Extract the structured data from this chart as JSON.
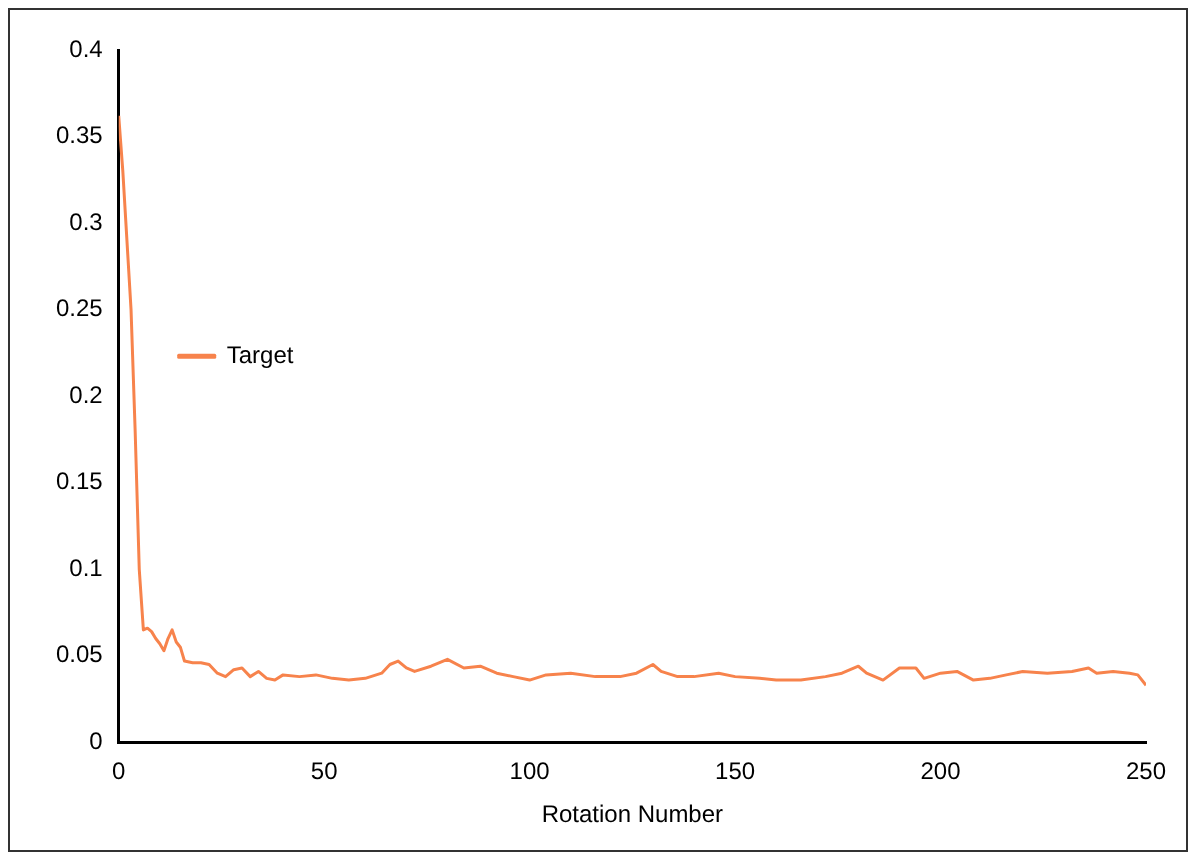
{
  "chart_data": {
    "type": "line",
    "xlabel": "Rotation Number",
    "xlim": [
      0,
      250
    ],
    "xticks": [
      0,
      50,
      100,
      150,
      200,
      250
    ],
    "ylim": [
      0,
      0.4
    ],
    "yticks": [
      0,
      0.05,
      0.1,
      0.15,
      0.2,
      0.25,
      0.3,
      0.35,
      0.4
    ],
    "grid": false,
    "legend": "top",
    "marker": "none",
    "line_style": "solid",
    "series": [
      {
        "name": "Target",
        "color": "#f7834c",
        "x": [
          0,
          1,
          2,
          3,
          4,
          5,
          6,
          7,
          8,
          9,
          10,
          11,
          12,
          13,
          14,
          15,
          16,
          18,
          20,
          22,
          24,
          26,
          28,
          30,
          32,
          34,
          36,
          38,
          40,
          44,
          48,
          52,
          56,
          60,
          64,
          66,
          68,
          70,
          72,
          76,
          80,
          84,
          88,
          92,
          96,
          100,
          104,
          110,
          116,
          122,
          126,
          130,
          132,
          136,
          140,
          146,
          150,
          156,
          160,
          166,
          172,
          176,
          180,
          182,
          186,
          190,
          194,
          196,
          200,
          204,
          208,
          212,
          216,
          220,
          226,
          232,
          236,
          238,
          242,
          246,
          248,
          250
        ],
        "values": [
          0.362,
          0.33,
          0.29,
          0.25,
          0.18,
          0.1,
          0.065,
          0.066,
          0.064,
          0.06,
          0.057,
          0.053,
          0.06,
          0.065,
          0.058,
          0.055,
          0.047,
          0.046,
          0.046,
          0.045,
          0.04,
          0.038,
          0.042,
          0.043,
          0.038,
          0.041,
          0.037,
          0.036,
          0.039,
          0.038,
          0.039,
          0.037,
          0.036,
          0.037,
          0.04,
          0.045,
          0.047,
          0.043,
          0.041,
          0.044,
          0.048,
          0.043,
          0.044,
          0.04,
          0.038,
          0.036,
          0.039,
          0.04,
          0.038,
          0.038,
          0.04,
          0.045,
          0.041,
          0.038,
          0.038,
          0.04,
          0.038,
          0.037,
          0.036,
          0.036,
          0.038,
          0.04,
          0.044,
          0.04,
          0.036,
          0.043,
          0.043,
          0.037,
          0.04,
          0.041,
          0.036,
          0.037,
          0.039,
          0.041,
          0.04,
          0.041,
          0.043,
          0.04,
          0.041,
          0.04,
          0.039,
          0.033
        ]
      }
    ]
  }
}
